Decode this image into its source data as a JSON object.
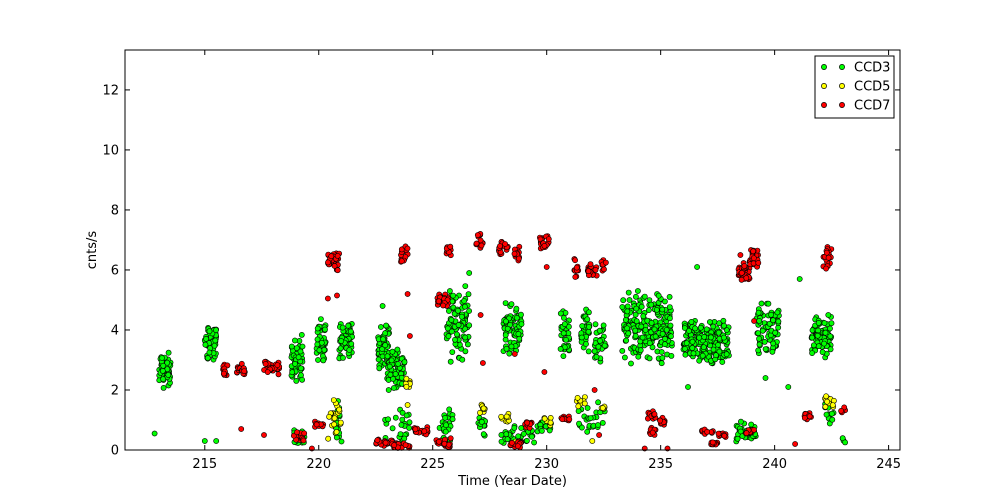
{
  "chart_data": {
    "type": "scatter",
    "title": "",
    "xlabel": "Time (Year Date)",
    "ylabel": "cnts/s",
    "xlim": [
      211.5,
      245.5
    ],
    "ylim": [
      0,
      13.33
    ],
    "grid": false,
    "legend_position": "top-right",
    "x_ticks": [
      215,
      220,
      225,
      230,
      235,
      240,
      245
    ],
    "y_ticks": [
      0,
      2,
      4,
      6,
      8,
      10,
      12
    ],
    "series": [
      {
        "name": "CCD3",
        "color": "#00ff00",
        "clusters": [
          {
            "x": [
              213.0,
              213.5
            ],
            "y": [
              1.9,
              3.4
            ],
            "n": 60
          },
          {
            "x": [
              215.0,
              215.5
            ],
            "y": [
              2.9,
              4.3
            ],
            "n": 60
          },
          {
            "x": [
              218.8,
              219.3
            ],
            "y": [
              2.2,
              3.9
            ],
            "n": 55
          },
          {
            "x": [
              219.9,
              220.3
            ],
            "y": [
              2.7,
              4.4
            ],
            "n": 45
          },
          {
            "x": [
              220.9,
              221.5
            ],
            "y": [
              3.0,
              4.4
            ],
            "n": 55
          },
          {
            "x": [
              222.6,
              223.1
            ],
            "y": [
              2.5,
              4.3
            ],
            "n": 50
          },
          {
            "x": [
              223.0,
              223.8
            ],
            "y": [
              1.9,
              3.5
            ],
            "n": 70
          },
          {
            "x": [
              225.6,
              226.6
            ],
            "y": [
              2.8,
              5.6
            ],
            "n": 90
          },
          {
            "x": [
              228.1,
              228.9
            ],
            "y": [
              3.1,
              5.1
            ],
            "n": 65
          },
          {
            "x": [
              230.6,
              231.0
            ],
            "y": [
              3.0,
              4.8
            ],
            "n": 35
          },
          {
            "x": [
              231.5,
              231.9
            ],
            "y": [
              3.2,
              4.8
            ],
            "n": 35
          },
          {
            "x": [
              232.1,
              232.6
            ],
            "y": [
              2.9,
              4.3
            ],
            "n": 35
          },
          {
            "x": [
              233.3,
              235.5
            ],
            "y": [
              2.8,
              5.3
            ],
            "n": 220
          },
          {
            "x": [
              236.0,
              238.0
            ],
            "y": [
              2.8,
              4.4
            ],
            "n": 220
          },
          {
            "x": [
              239.2,
              240.2
            ],
            "y": [
              3.1,
              5.0
            ],
            "n": 80
          },
          {
            "x": [
              241.6,
              242.5
            ],
            "y": [
              3.0,
              4.6
            ],
            "n": 85
          },
          {
            "x": [
              218.9,
              219.4
            ],
            "y": [
              0.1,
              0.8
            ],
            "n": 20
          },
          {
            "x": [
              220.7,
              221.0
            ],
            "y": [
              0.2,
              1.8
            ],
            "n": 18
          },
          {
            "x": [
              222.9,
              224.0
            ],
            "y": [
              0.1,
              1.4
            ],
            "n": 25
          },
          {
            "x": [
              225.3,
              225.9
            ],
            "y": [
              0.1,
              1.5
            ],
            "n": 25
          },
          {
            "x": [
              227.0,
              227.3
            ],
            "y": [
              0.4,
              1.2
            ],
            "n": 15
          },
          {
            "x": [
              228.0,
              229.6
            ],
            "y": [
              0.1,
              0.9
            ],
            "n": 35
          },
          {
            "x": [
              229.7,
              230.2
            ],
            "y": [
              0.5,
              1.1
            ],
            "n": 18
          },
          {
            "x": [
              231.4,
              232.6
            ],
            "y": [
              0.5,
              1.7
            ],
            "n": 25
          },
          {
            "x": [
              238.3,
              239.2
            ],
            "y": [
              0.2,
              1.0
            ],
            "n": 40
          },
          {
            "x": [
              242.2,
              242.6
            ],
            "y": [
              0.8,
              1.8
            ],
            "n": 15
          },
          {
            "x": [
              242.9,
              243.1
            ],
            "y": [
              0.1,
              0.5
            ],
            "n": 4
          }
        ],
        "outliers": [
          [
            212.8,
            0.55
          ],
          [
            215.0,
            0.3
          ],
          [
            215.5,
            0.3
          ],
          [
            222.8,
            4.8
          ],
          [
            226.6,
            5.9
          ],
          [
            236.6,
            6.1
          ],
          [
            234.0,
            5.3
          ],
          [
            241.1,
            5.7
          ],
          [
            239.6,
            2.4
          ],
          [
            240.6,
            2.1
          ],
          [
            236.2,
            2.1
          ]
        ]
      },
      {
        "name": "CCD5",
        "color": "#ffff00",
        "clusters": [
          {
            "x": [
              220.4,
              221.0
            ],
            "y": [
              0.2,
              1.9
            ],
            "n": 20
          },
          {
            "x": [
              223.8,
              224.0
            ],
            "y": [
              1.9,
              2.5
            ],
            "n": 8
          },
          {
            "x": [
              227.0,
              227.3
            ],
            "y": [
              1.2,
              1.6
            ],
            "n": 10
          },
          {
            "x": [
              228.0,
              228.4
            ],
            "y": [
              0.9,
              1.3
            ],
            "n": 10
          },
          {
            "x": [
              229.9,
              230.2
            ],
            "y": [
              0.7,
              1.2
            ],
            "n": 8
          },
          {
            "x": [
              231.3,
              231.7
            ],
            "y": [
              1.4,
              1.9
            ],
            "n": 10
          },
          {
            "x": [
              232.4,
              232.6
            ],
            "y": [
              1.2,
              1.5
            ],
            "n": 5
          },
          {
            "x": [
              242.2,
              242.6
            ],
            "y": [
              1.3,
              1.9
            ],
            "n": 12
          },
          {
            "x": [
              228.4,
              228.9
            ],
            "y": [
              0.1,
              0.3
            ],
            "n": 8
          }
        ],
        "outliers": [
          [
            223.9,
            1.5
          ],
          [
            232.0,
            0.3
          ]
        ]
      },
      {
        "name": "CCD7",
        "color": "#ff0000",
        "clusters": [
          {
            "x": [
              215.8,
              216.0
            ],
            "y": [
              2.4,
              2.9
            ],
            "n": 12
          },
          {
            "x": [
              216.4,
              216.8
            ],
            "y": [
              2.4,
              2.9
            ],
            "n": 20
          },
          {
            "x": [
              217.6,
              218.3
            ],
            "y": [
              2.5,
              3.0
            ],
            "n": 30
          },
          {
            "x": [
              220.4,
              220.9
            ],
            "y": [
              5.9,
              6.7
            ],
            "n": 40
          },
          {
            "x": [
              223.6,
              223.9
            ],
            "y": [
              6.2,
              6.9
            ],
            "n": 18
          },
          {
            "x": [
              225.2,
              225.7
            ],
            "y": [
              4.7,
              5.3
            ],
            "n": 30
          },
          {
            "x": [
              225.6,
              225.8
            ],
            "y": [
              6.3,
              6.9
            ],
            "n": 10
          },
          {
            "x": [
              226.9,
              227.2
            ],
            "y": [
              6.6,
              7.3
            ],
            "n": 14
          },
          {
            "x": [
              227.9,
              228.3
            ],
            "y": [
              6.4,
              7.1
            ],
            "n": 18
          },
          {
            "x": [
              228.5,
              228.8
            ],
            "y": [
              6.2,
              6.9
            ],
            "n": 12
          },
          {
            "x": [
              229.7,
              230.1
            ],
            "y": [
              6.6,
              7.2
            ],
            "n": 18
          },
          {
            "x": [
              231.2,
              231.4
            ],
            "y": [
              5.7,
              6.4
            ],
            "n": 10
          },
          {
            "x": [
              231.8,
              232.2
            ],
            "y": [
              5.7,
              6.3
            ],
            "n": 20
          },
          {
            "x": [
              232.4,
              232.6
            ],
            "y": [
              5.9,
              6.4
            ],
            "n": 8
          },
          {
            "x": [
              238.4,
              238.9
            ],
            "y": [
              5.6,
              6.3
            ],
            "n": 40
          },
          {
            "x": [
              238.9,
              239.3
            ],
            "y": [
              6.0,
              6.7
            ],
            "n": 25
          },
          {
            "x": [
              242.1,
              242.5
            ],
            "y": [
              6.0,
              6.8
            ],
            "n": 18
          },
          {
            "x": [
              218.9,
              219.4
            ],
            "y": [
              0.2,
              0.6
            ],
            "n": 15
          },
          {
            "x": [
              219.8,
              220.2
            ],
            "y": [
              0.7,
              1.0
            ],
            "n": 12
          },
          {
            "x": [
              222.5,
              223.3
            ],
            "y": [
              0.1,
              0.4
            ],
            "n": 25
          },
          {
            "x": [
              223.3,
              224.0
            ],
            "y": [
              0.05,
              0.25
            ],
            "n": 20
          },
          {
            "x": [
              224.1,
              224.8
            ],
            "y": [
              0.5,
              0.8
            ],
            "n": 20
          },
          {
            "x": [
              225.0,
              225.8
            ],
            "y": [
              0.05,
              0.5
            ],
            "n": 18
          },
          {
            "x": [
              228.4,
              228.9
            ],
            "y": [
              0.05,
              0.3
            ],
            "n": 15
          },
          {
            "x": [
              229.0,
              229.4
            ],
            "y": [
              0.7,
              1.0
            ],
            "n": 10
          },
          {
            "x": [
              230.6,
              231.0
            ],
            "y": [
              0.9,
              1.2
            ],
            "n": 10
          },
          {
            "x": [
              234.4,
              234.8
            ],
            "y": [
              1.0,
              1.3
            ],
            "n": 12
          },
          {
            "x": [
              234.5,
              234.9
            ],
            "y": [
              0.5,
              0.8
            ],
            "n": 10
          },
          {
            "x": [
              234.9,
              235.2
            ],
            "y": [
              0.8,
              1.1
            ],
            "n": 12
          },
          {
            "x": [
              236.8,
              237.3
            ],
            "y": [
              0.5,
              0.7
            ],
            "n": 12
          },
          {
            "x": [
              237.2,
              237.5
            ],
            "y": [
              0.1,
              0.3
            ],
            "n": 10
          },
          {
            "x": [
              237.5,
              237.9
            ],
            "y": [
              0.4,
              0.6
            ],
            "n": 10
          },
          {
            "x": [
              238.7,
              239.1
            ],
            "y": [
              0.5,
              0.7
            ],
            "n": 10
          },
          {
            "x": [
              241.2,
              241.6
            ],
            "y": [
              1.0,
              1.3
            ],
            "n": 12
          },
          {
            "x": [
              242.9,
              243.1
            ],
            "y": [
              1.2,
              1.5
            ],
            "n": 5
          }
        ],
        "outliers": [
          [
            217.6,
            0.5
          ],
          [
            216.6,
            0.7
          ],
          [
            219.7,
            0.05
          ],
          [
            220.4,
            5.05
          ],
          [
            220.8,
            5.15
          ],
          [
            223.9,
            5.2
          ],
          [
            224.0,
            3.8
          ],
          [
            227.1,
            4.5
          ],
          [
            227.2,
            2.9
          ],
          [
            228.6,
            3.2
          ],
          [
            229.9,
            2.6
          ],
          [
            230.0,
            6.1
          ],
          [
            232.1,
            2.0
          ],
          [
            232.3,
            0.5
          ],
          [
            234.3,
            0.05
          ],
          [
            235.3,
            0.05
          ],
          [
            240.9,
            0.2
          ],
          [
            239.1,
            4.3
          ],
          [
            238.5,
            6.5
          ]
        ]
      }
    ]
  }
}
